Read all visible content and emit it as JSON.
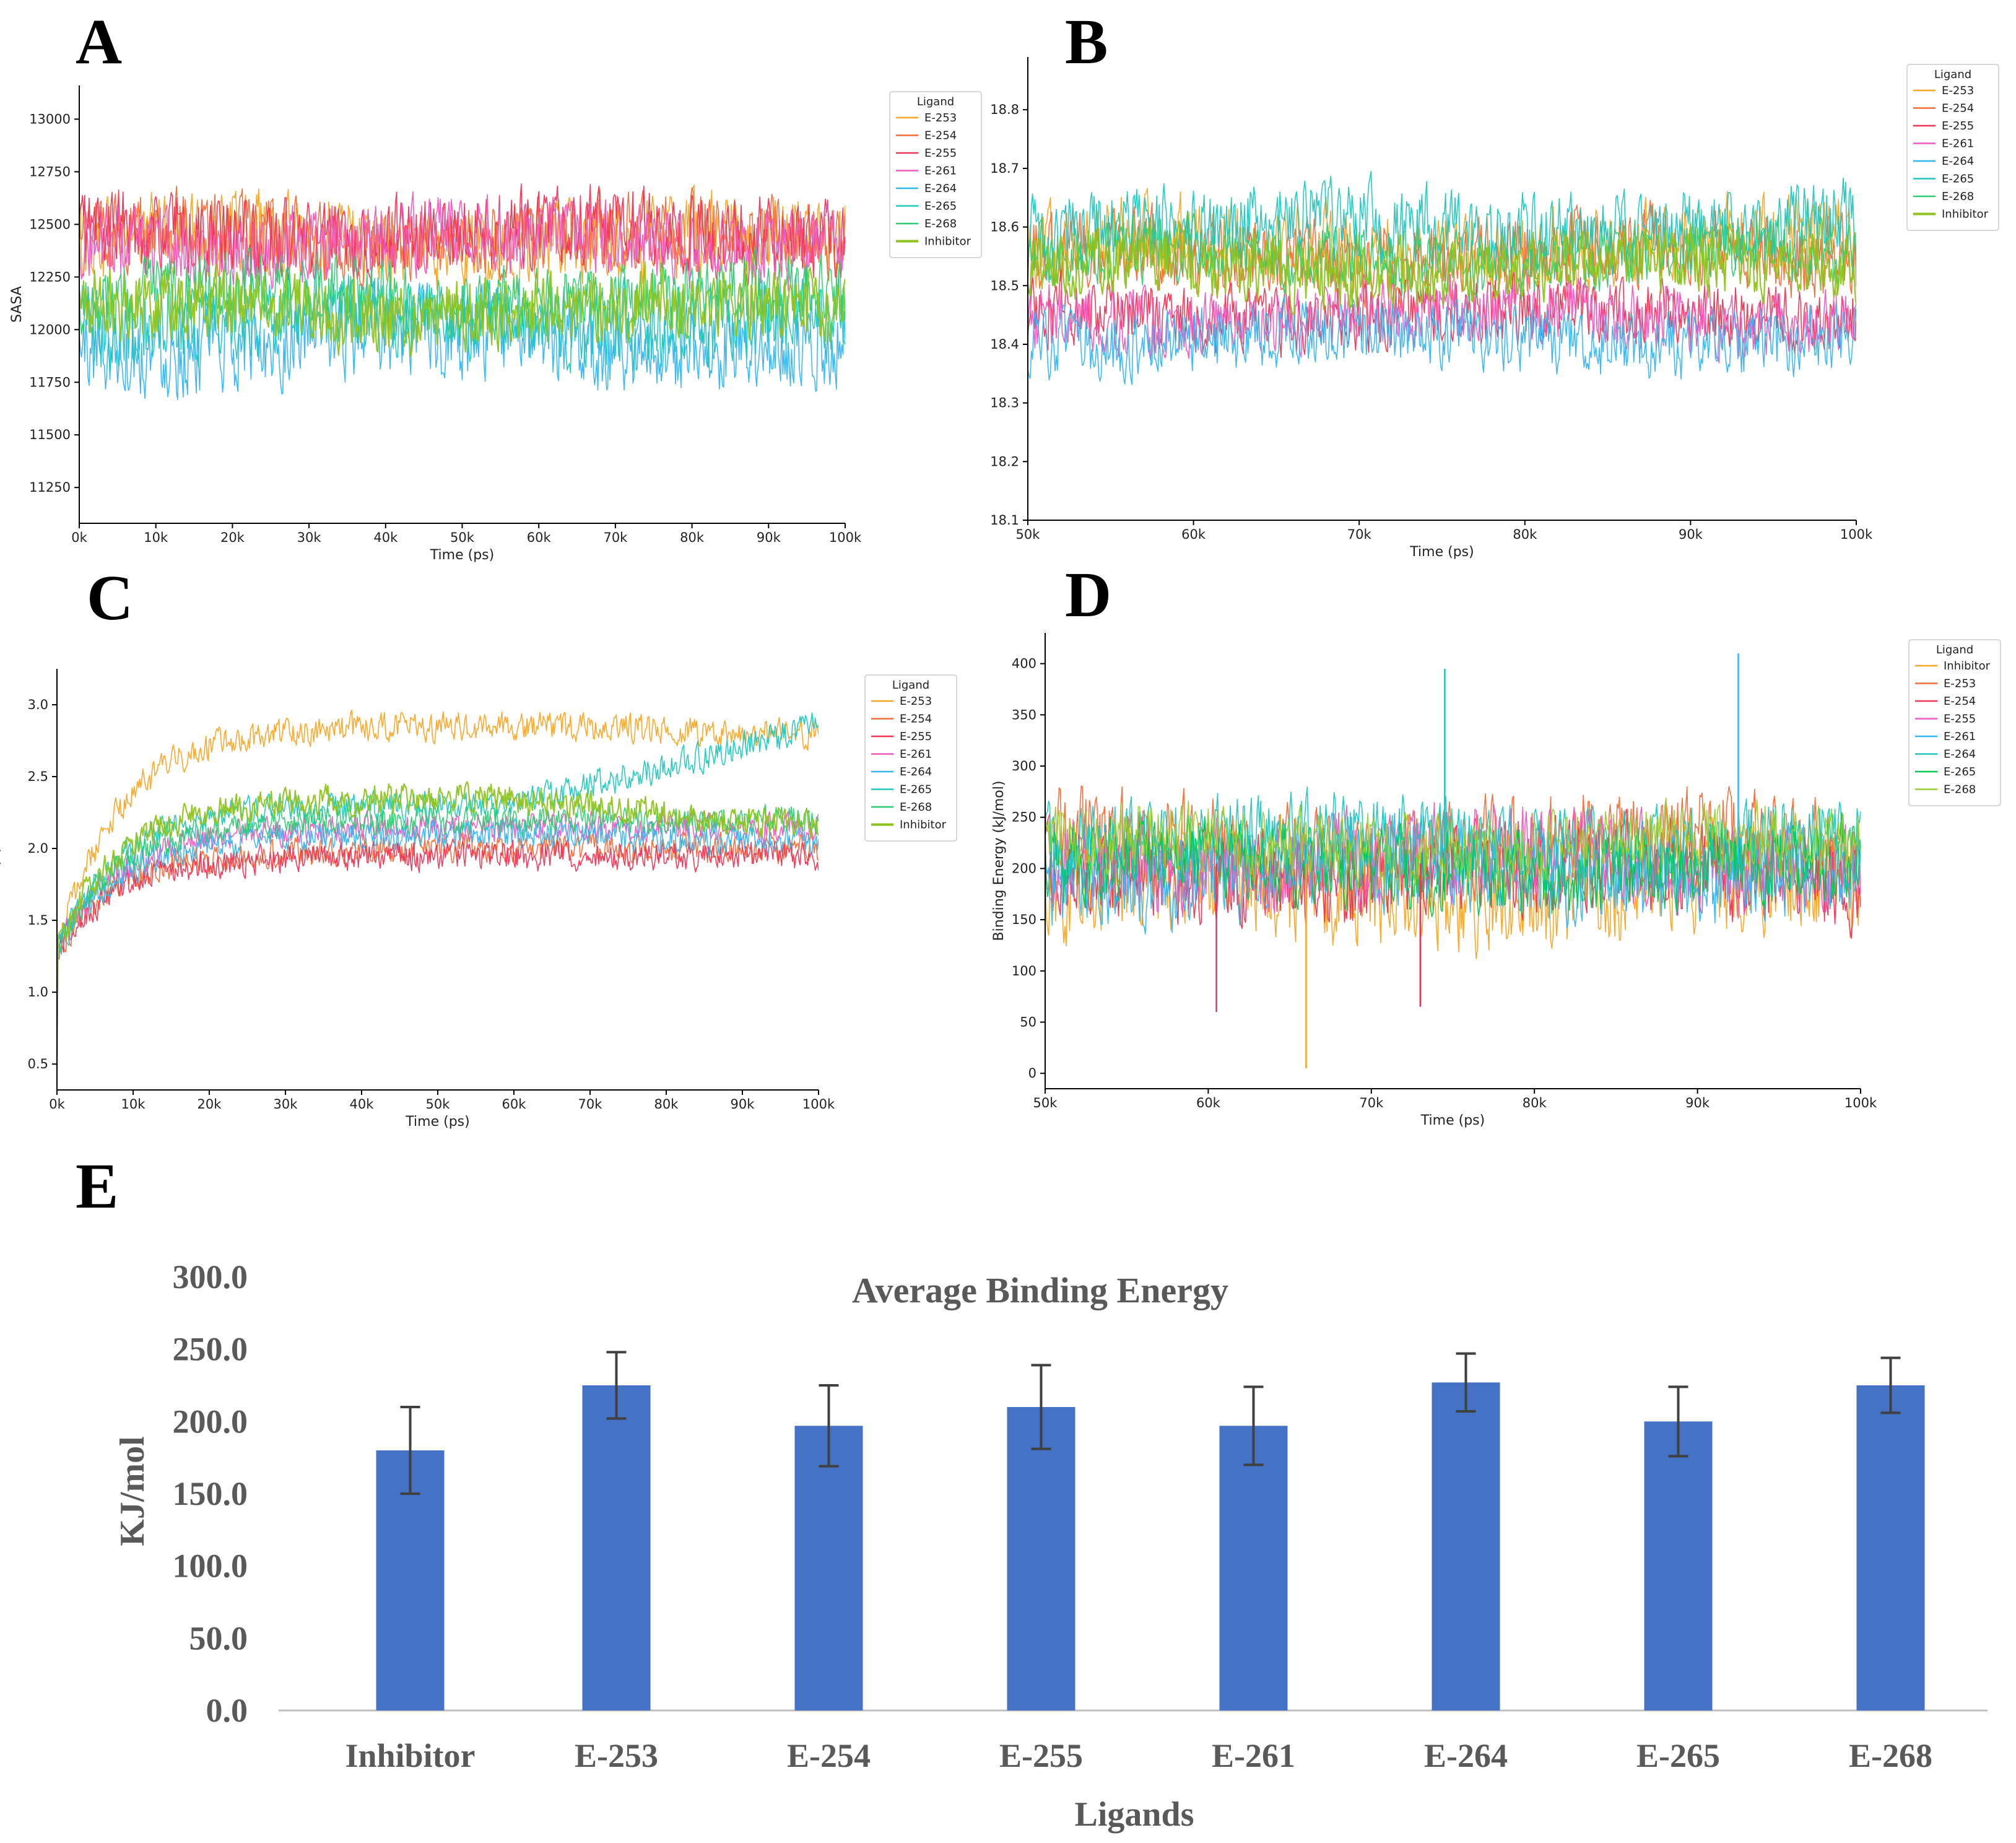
{
  "panels": {
    "A": {
      "letter": "A"
    },
    "B": {
      "letter": "B"
    },
    "C": {
      "letter": "C"
    },
    "D": {
      "letter": "D"
    },
    "E": {
      "letter": "E"
    }
  },
  "chart_data": [
    {
      "id": "A",
      "type": "line",
      "ylabel": "SASA",
      "xlabel": "Time (ps)",
      "xlim": [
        0,
        100000
      ],
      "ylim": [
        11080,
        13160
      ],
      "xticks": [
        0,
        10000,
        20000,
        30000,
        40000,
        50000,
        60000,
        70000,
        80000,
        90000,
        100000
      ],
      "xticklabels": [
        "0k",
        "10k",
        "20k",
        "30k",
        "40k",
        "50k",
        "60k",
        "70k",
        "80k",
        "90k",
        "100k"
      ],
      "yticks": [
        11250,
        11500,
        11750,
        12000,
        12250,
        12500,
        12750,
        13000
      ],
      "yticklabels": [
        "11250",
        "11500",
        "11750",
        "12000",
        "12250",
        "12500",
        "12750",
        "13000"
      ],
      "legend_title": "Ligand",
      "legend_position": "outside-top-right",
      "series": [
        {
          "name": "E-253",
          "color": "#F5A623",
          "mean": 12420,
          "amp": 170
        },
        {
          "name": "E-254",
          "color": "#F26B38",
          "mean": 12440,
          "amp": 160
        },
        {
          "name": "E-255",
          "color": "#EE3355",
          "mean": 12450,
          "amp": 170
        },
        {
          "name": "E-261",
          "color": "#EE58C0",
          "mean": 12420,
          "amp": 160
        },
        {
          "name": "E-264",
          "color": "#35B6F0",
          "mean": 11950,
          "amp": 190
        },
        {
          "name": "E-265",
          "color": "#1CC7BE",
          "mean": 12050,
          "amp": 180
        },
        {
          "name": "E-268",
          "color": "#2ECC71",
          "mean": 12150,
          "amp": 150
        },
        {
          "name": "Inhibitor",
          "color": "#8FC31F",
          "mean": 12100,
          "amp": 150
        }
      ]
    },
    {
      "id": "B",
      "type": "line",
      "ylabel": "",
      "xlabel": "Time (ps)",
      "xlim": [
        50000,
        100000
      ],
      "ylim": [
        18.1,
        18.89
      ],
      "xticks": [
        50000,
        60000,
        70000,
        80000,
        90000,
        100000
      ],
      "xticklabels": [
        "50k",
        "60k",
        "70k",
        "80k",
        "90k",
        "100k"
      ],
      "yticks": [
        18.1,
        18.2,
        18.3,
        18.4,
        18.5,
        18.6,
        18.7,
        18.8
      ],
      "yticklabels": [
        "18.1",
        "18.2",
        "18.3",
        "18.4",
        "18.5",
        "18.6",
        "18.7",
        "18.8"
      ],
      "legend_title": "Ligand",
      "legend_position": "outside-top-right",
      "series": [
        {
          "name": "E-253",
          "color": "#F5A623",
          "mean": 18.57,
          "amp": 0.06
        },
        {
          "name": "E-254",
          "color": "#F26B38",
          "mean": 18.55,
          "amp": 0.06
        },
        {
          "name": "E-255",
          "color": "#EE3355",
          "mean": 18.45,
          "amp": 0.05
        },
        {
          "name": "E-261",
          "color": "#EE58C0",
          "mean": 18.45,
          "amp": 0.05
        },
        {
          "name": "E-264",
          "color": "#35B6F0",
          "mean": 18.41,
          "amp": 0.05
        },
        {
          "name": "E-265",
          "color": "#1CC7BE",
          "mean": 18.6,
          "amp": 0.06
        },
        {
          "name": "E-268",
          "color": "#2ECC71",
          "mean": 18.55,
          "amp": 0.05
        },
        {
          "name": "Inhibitor",
          "color": "#8FC31F",
          "mean": 18.53,
          "amp": 0.05
        }
      ]
    },
    {
      "id": "C",
      "type": "line",
      "ylabel": "RMSD (Å)",
      "xlabel": "Time (ps)",
      "xlim": [
        0,
        100000
      ],
      "ylim": [
        0.32,
        3.25
      ],
      "xticks": [
        0,
        10000,
        20000,
        30000,
        40000,
        50000,
        60000,
        70000,
        80000,
        90000,
        100000
      ],
      "xticklabels": [
        "0k",
        "10k",
        "20k",
        "30k",
        "40k",
        "50k",
        "60k",
        "70k",
        "80k",
        "90k",
        "100k"
      ],
      "yticks": [
        0.5,
        1.0,
        1.5,
        2.0,
        2.5,
        3.0
      ],
      "yticklabels": [
        "0.5",
        "1.0",
        "1.5",
        "2.0",
        "2.5",
        "3.0"
      ],
      "legend_title": "Ligand",
      "legend_position": "outside-top-right",
      "series": [
        {
          "name": "E-253",
          "color": "#F5A623",
          "end": 2.8,
          "plateau": 2.85
        },
        {
          "name": "E-254",
          "color": "#F26B38",
          "end": 2.0,
          "plateau": 2.0
        },
        {
          "name": "E-255",
          "color": "#EE3355",
          "end": 1.95,
          "plateau": 1.95
        },
        {
          "name": "E-261",
          "color": "#EE58C0",
          "end": 2.15,
          "plateau": 2.15
        },
        {
          "name": "E-264",
          "color": "#35B6F0",
          "end": 2.05,
          "plateau": 2.1
        },
        {
          "name": "E-265",
          "color": "#1CC7BE",
          "end": 2.85,
          "plateau": 2.3
        },
        {
          "name": "E-268",
          "color": "#2ECC71",
          "end": 2.2,
          "plateau": 2.2
        },
        {
          "name": "Inhibitor",
          "color": "#8FC31F",
          "end": 2.15,
          "plateau": 2.35
        }
      ]
    },
    {
      "id": "D",
      "type": "line",
      "ylabel": "Binding Energy (kJ/mol)",
      "xlabel": "Time (ps)",
      "xlim": [
        50000,
        100000
      ],
      "ylim": [
        -15,
        430
      ],
      "xticks": [
        50000,
        60000,
        70000,
        80000,
        90000,
        100000
      ],
      "xticklabels": [
        "50k",
        "60k",
        "70k",
        "80k",
        "90k",
        "100k"
      ],
      "yticks": [
        0,
        50,
        100,
        150,
        200,
        250,
        300,
        350,
        400
      ],
      "yticklabels": [
        "0",
        "50",
        "100",
        "150",
        "200",
        "250",
        "300",
        "350",
        "400"
      ],
      "legend_title": "Ligand",
      "legend_position": "outside-top-right",
      "series": [
        {
          "name": "Inhibitor",
          "color": "#F5A623",
          "mean": 180,
          "amp": 45
        },
        {
          "name": "E-253",
          "color": "#F26B38",
          "mean": 225,
          "amp": 40
        },
        {
          "name": "E-254",
          "color": "#EE3355",
          "mean": 197,
          "amp": 40
        },
        {
          "name": "E-255",
          "color": "#EE58C0",
          "mean": 210,
          "amp": 40
        },
        {
          "name": "E-261",
          "color": "#35B6F0",
          "mean": 197,
          "amp": 40
        },
        {
          "name": "E-264",
          "color": "#1CC7BE",
          "mean": 227,
          "amp": 35
        },
        {
          "name": "E-265",
          "color": "#00C853",
          "mean": 200,
          "amp": 35
        },
        {
          "name": "E-268",
          "color": "#9ACD32",
          "mean": 225,
          "amp": 30
        }
      ]
    },
    {
      "id": "E",
      "type": "bar",
      "title": "Average Binding  Energy",
      "xlabel": "Ligands",
      "ylabel": "KJ/mol",
      "ylim": [
        0,
        300
      ],
      "yticks": [
        0,
        50,
        100,
        150,
        200,
        250,
        300
      ],
      "yticklabels": [
        "0.0",
        "50.0",
        "100.0",
        "150.0",
        "200.0",
        "250.0",
        "300.0"
      ],
      "categories": [
        "Inhibitor",
        "E-253",
        "E-254",
        "E-255",
        "E-261",
        "E-264",
        "E-265",
        "E-268"
      ],
      "values": [
        180,
        225,
        197,
        210,
        197,
        227,
        200,
        225
      ],
      "errors": [
        30,
        23,
        28,
        29,
        27,
        20,
        24,
        19
      ],
      "color": "#4472C4"
    }
  ]
}
